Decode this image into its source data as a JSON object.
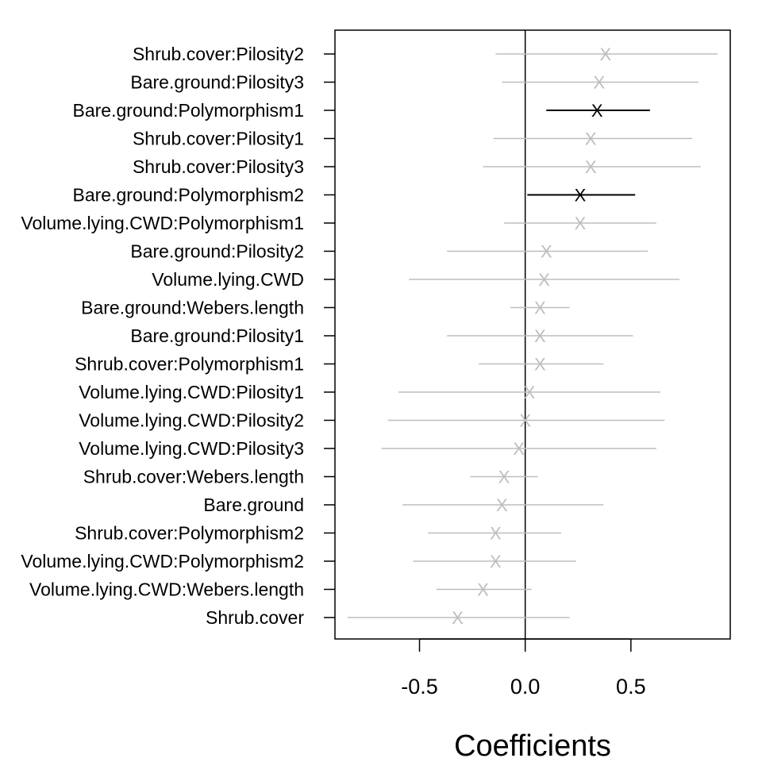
{
  "chart_data": {
    "type": "coefficient-plot",
    "xlabel": "Coefficients",
    "xlim": [
      -0.9,
      0.97
    ],
    "xticks": [
      -0.5,
      0.0,
      0.5
    ],
    "xtick_labels": [
      "-0.5",
      "0.0",
      "0.5"
    ],
    "zero_line": 0.0,
    "grid": false,
    "marker": "X",
    "colors": {
      "significant": "#000000",
      "nonsignificant": "#bebebe",
      "axis": "#000000"
    },
    "terms": [
      {
        "term": "Shrub.cover:Pilosity2",
        "estimate": 0.38,
        "lower": -0.14,
        "upper": 0.91,
        "significant": false
      },
      {
        "term": "Bare.ground:Pilosity3",
        "estimate": 0.35,
        "lower": -0.11,
        "upper": 0.82,
        "significant": false
      },
      {
        "term": "Bare.ground:Polymorphism1",
        "estimate": 0.34,
        "lower": 0.1,
        "upper": 0.59,
        "significant": true
      },
      {
        "term": "Shrub.cover:Pilosity1",
        "estimate": 0.31,
        "lower": -0.15,
        "upper": 0.79,
        "significant": false
      },
      {
        "term": "Shrub.cover:Pilosity3",
        "estimate": 0.31,
        "lower": -0.2,
        "upper": 0.83,
        "significant": false
      },
      {
        "term": "Bare.ground:Polymorphism2",
        "estimate": 0.26,
        "lower": 0.01,
        "upper": 0.52,
        "significant": true
      },
      {
        "term": "Volume.lying.CWD:Polymorphism1",
        "estimate": 0.26,
        "lower": -0.1,
        "upper": 0.62,
        "significant": false
      },
      {
        "term": "Bare.ground:Pilosity2",
        "estimate": 0.1,
        "lower": -0.37,
        "upper": 0.58,
        "significant": false
      },
      {
        "term": "Volume.lying.CWD",
        "estimate": 0.09,
        "lower": -0.55,
        "upper": 0.73,
        "significant": false
      },
      {
        "term": "Bare.ground:Webers.length",
        "estimate": 0.07,
        "lower": -0.07,
        "upper": 0.21,
        "significant": false
      },
      {
        "term": "Bare.ground:Pilosity1",
        "estimate": 0.07,
        "lower": -0.37,
        "upper": 0.51,
        "significant": false
      },
      {
        "term": "Shrub.cover:Polymorphism1",
        "estimate": 0.07,
        "lower": -0.22,
        "upper": 0.37,
        "significant": false
      },
      {
        "term": "Volume.lying.CWD:Pilosity1",
        "estimate": 0.02,
        "lower": -0.6,
        "upper": 0.64,
        "significant": false
      },
      {
        "term": "Volume.lying.CWD:Pilosity2",
        "estimate": 0.0,
        "lower": -0.65,
        "upper": 0.66,
        "significant": false
      },
      {
        "term": "Volume.lying.CWD:Pilosity3",
        "estimate": -0.03,
        "lower": -0.68,
        "upper": 0.62,
        "significant": false
      },
      {
        "term": "Shrub.cover:Webers.length",
        "estimate": -0.1,
        "lower": -0.26,
        "upper": 0.06,
        "significant": false
      },
      {
        "term": "Bare.ground",
        "estimate": -0.11,
        "lower": -0.58,
        "upper": 0.37,
        "significant": false
      },
      {
        "term": "Shrub.cover:Polymorphism2",
        "estimate": -0.14,
        "lower": -0.46,
        "upper": 0.17,
        "significant": false
      },
      {
        "term": "Volume.lying.CWD:Polymorphism2",
        "estimate": -0.14,
        "lower": -0.53,
        "upper": 0.24,
        "significant": false
      },
      {
        "term": "Volume.lying.CWD:Webers.length",
        "estimate": -0.2,
        "lower": -0.42,
        "upper": 0.03,
        "significant": false
      },
      {
        "term": "Shrub.cover",
        "estimate": -0.32,
        "lower": -0.84,
        "upper": 0.21,
        "significant": false
      }
    ]
  }
}
